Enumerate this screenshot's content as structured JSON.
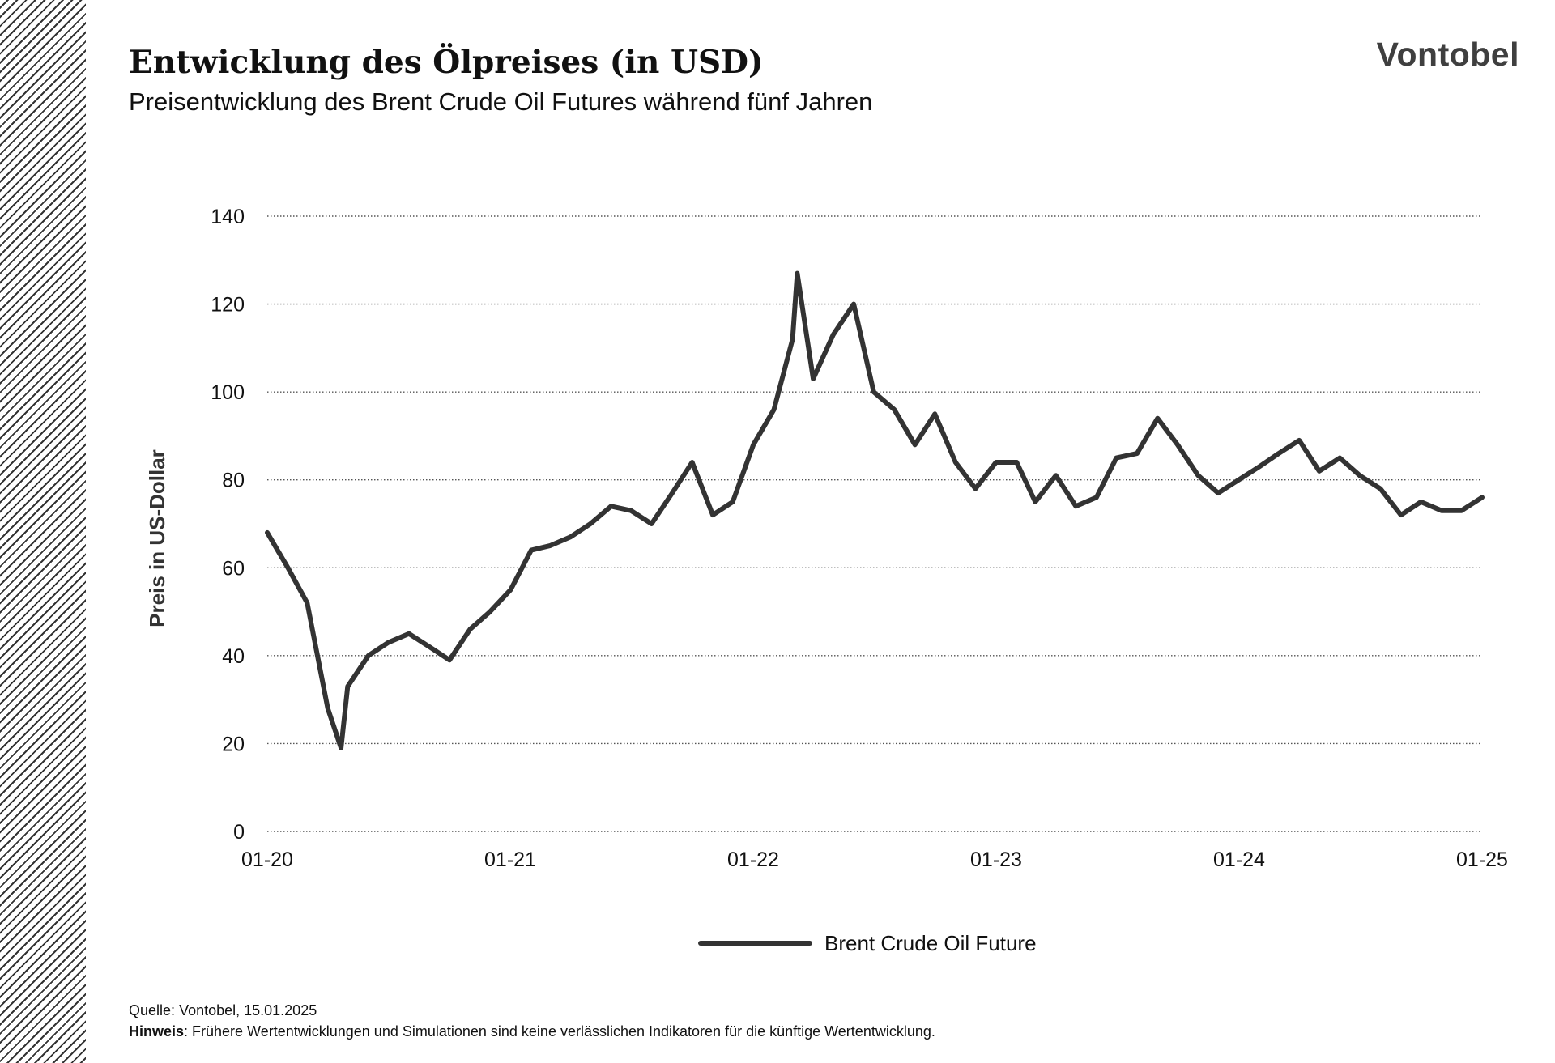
{
  "header": {
    "title": "Entwicklung des Ölpreises (in USD)",
    "subtitle": "Preisentwicklung des Brent Crude Oil Futures während fünf Jahren",
    "brand": "Vontobel"
  },
  "footer": {
    "source_label": "Quelle:",
    "source_value": "Vontobel,  15.01.2025",
    "note_label": "Hinweis",
    "note_text": ": Frühere Wertentwicklungen und Simulationen sind keine verlässlichen Indikatoren für die künftige Wertentwicklung."
  },
  "colors": {
    "line": "#333333",
    "grid": "#555555",
    "text": "#111111"
  },
  "chart_data": {
    "type": "line",
    "title": "Entwicklung des Ölpreises (in USD)",
    "subtitle": "Preisentwicklung des Brent Crude Oil Futures während fünf Jahren",
    "xlabel": "",
    "ylabel": "Preis in US-Dollar",
    "ylim": [
      0,
      140
    ],
    "yticks": [
      0,
      20,
      40,
      60,
      80,
      100,
      120,
      140
    ],
    "x_tick_labels": [
      "01-20",
      "01-21",
      "01-22",
      "01-23",
      "01-24",
      "01-25"
    ],
    "grid": true,
    "legend_position": "bottom",
    "series": [
      {
        "name": "Brent Crude Oil Future",
        "x": [
          "2020-01",
          "2020-02",
          "2020-03",
          "2020-04",
          "2020-04-21",
          "2020-05",
          "2020-06",
          "2020-07",
          "2020-08",
          "2020-09",
          "2020-10",
          "2020-11",
          "2020-12",
          "2021-01",
          "2021-02",
          "2021-03",
          "2021-04",
          "2021-05",
          "2021-06",
          "2021-07",
          "2021-08",
          "2021-09",
          "2021-10",
          "2021-11",
          "2021-12",
          "2022-01",
          "2022-02",
          "2022-03",
          "2022-03-08",
          "2022-04",
          "2022-05",
          "2022-06",
          "2022-07",
          "2022-08",
          "2022-09",
          "2022-10",
          "2022-11",
          "2022-12",
          "2023-01",
          "2023-02",
          "2023-03",
          "2023-04",
          "2023-05",
          "2023-06",
          "2023-07",
          "2023-08",
          "2023-09",
          "2023-10",
          "2023-11",
          "2023-12",
          "2024-01",
          "2024-02",
          "2024-03",
          "2024-04",
          "2024-05",
          "2024-06",
          "2024-07",
          "2024-08",
          "2024-09",
          "2024-10",
          "2024-11",
          "2024-12",
          "2025-01"
        ],
        "values": [
          68,
          60,
          52,
          28,
          19,
          33,
          40,
          43,
          45,
          42,
          39,
          46,
          50,
          55,
          64,
          65,
          67,
          70,
          74,
          73,
          70,
          77,
          84,
          72,
          75,
          88,
          96,
          112,
          127,
          103,
          113,
          120,
          100,
          96,
          88,
          95,
          84,
          78,
          84,
          84,
          75,
          81,
          74,
          76,
          85,
          86,
          94,
          88,
          81,
          77,
          80,
          83,
          86,
          89,
          82,
          85,
          81,
          78,
          72,
          75,
          73,
          73,
          76
        ]
      }
    ]
  }
}
